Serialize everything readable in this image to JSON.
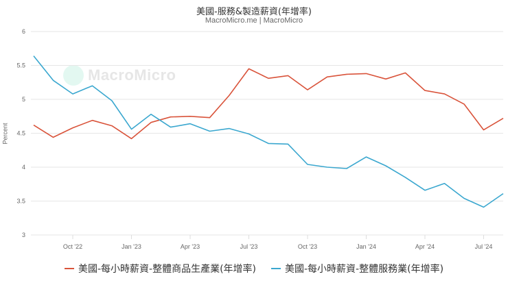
{
  "header": {
    "title": "美國-服務&製造薪資(年增率)",
    "subtitle": "MacroMicro.me | MacroMicro"
  },
  "watermark": {
    "text": "MacroMicro",
    "icon": "macromicro-logo-icon"
  },
  "colors": {
    "goods": "#d9533a",
    "services": "#3aa7cf",
    "grid": "#e6e6e6"
  },
  "chart_data": {
    "type": "line",
    "title": "美國-服務&製造薪資(年增率)",
    "subtitle": "MacroMicro.me | MacroMicro",
    "xlabel": "",
    "ylabel": "Percent",
    "ylim": [
      3,
      6
    ],
    "yticks": [
      3,
      3.5,
      4,
      4.5,
      5,
      5.5,
      6
    ],
    "grid": true,
    "legend_position": "bottom",
    "x": [
      "Aug '22",
      "Sep '22",
      "Oct '22",
      "Nov '22",
      "Dec '22",
      "Jan '23",
      "Feb '23",
      "Mar '23",
      "Apr '23",
      "May '23",
      "Jun '23",
      "Jul '23",
      "Aug '23",
      "Sep '23",
      "Oct '23",
      "Nov '23",
      "Dec '23",
      "Jan '24",
      "Feb '24",
      "Mar '24",
      "Apr '24",
      "May '24",
      "Jun '24",
      "Jul '24",
      "Aug '24"
    ],
    "xtick_labels": [
      "Oct '22",
      "Jan '23",
      "Apr '23",
      "Jul '23",
      "Oct '23",
      "Jan '24",
      "Apr '24",
      "Jul '24"
    ],
    "series": [
      {
        "name": "美國-每小時薪資-整體商品生產業(年增率)",
        "color": "#d9533a",
        "values": [
          4.62,
          4.44,
          4.58,
          4.69,
          4.61,
          4.42,
          4.66,
          4.74,
          4.75,
          4.73,
          5.06,
          5.45,
          5.31,
          5.35,
          5.14,
          5.33,
          5.37,
          5.38,
          5.3,
          5.39,
          5.13,
          5.08,
          4.93,
          4.55,
          4.72
        ]
      },
      {
        "name": "美國-每小時薪資-整體服務業(年增率)",
        "color": "#3aa7cf",
        "values": [
          5.64,
          5.28,
          5.08,
          5.2,
          4.98,
          4.56,
          4.78,
          4.59,
          4.64,
          4.53,
          4.57,
          4.49,
          4.35,
          4.34,
          4.04,
          4.0,
          3.98,
          4.15,
          4.02,
          3.85,
          3.66,
          3.76,
          3.54,
          3.41,
          3.61
        ]
      }
    ]
  },
  "legend": [
    {
      "label": "美國-每小時薪資-整體商品生產業(年增率)"
    },
    {
      "label": "美國-每小時薪資-整體服務業(年增率)"
    }
  ]
}
